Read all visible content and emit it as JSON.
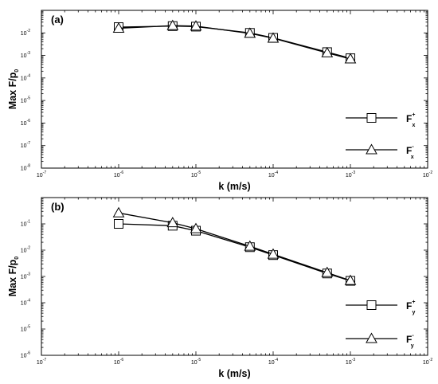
{
  "chart_data": [
    {
      "type": "line",
      "panel_label": "(a)",
      "xlabel": "k (m/s)",
      "ylabel": {
        "base": "Max F/p",
        "sub": "0"
      },
      "xscale": "log",
      "yscale": "log",
      "xlim": [
        1e-07,
        0.01
      ],
      "ylim": [
        1e-08,
        0.1
      ],
      "x_ticks": [
        {
          "base": "10",
          "exp": "-7",
          "v": 1e-07
        },
        {
          "base": "10",
          "exp": "-6",
          "v": 1e-06
        },
        {
          "base": "10",
          "exp": "-5",
          "v": 1e-05
        },
        {
          "base": "10",
          "exp": "-4",
          "v": 0.0001
        },
        {
          "base": "10",
          "exp": "-3",
          "v": 0.001
        },
        {
          "base": "10",
          "exp": "-2",
          "v": 0.01
        }
      ],
      "y_ticks": [
        {
          "base": "10",
          "exp": "-8",
          "v": 1e-08
        },
        {
          "base": "10",
          "exp": "-7",
          "v": 1e-07
        },
        {
          "base": "10",
          "exp": "-6",
          "v": 1e-06
        },
        {
          "base": "10",
          "exp": "-5",
          "v": 1e-05
        },
        {
          "base": "10",
          "exp": "-4",
          "v": 0.0001
        },
        {
          "base": "10",
          "exp": "-3",
          "v": 0.001
        },
        {
          "base": "10",
          "exp": "-2",
          "v": 0.01
        }
      ],
      "legend_position": "lower-right",
      "series": [
        {
          "name": "F",
          "sup": "+",
          "sub": "x",
          "marker": "square",
          "x": [
            1e-06,
            5e-06,
            1e-05,
            5e-05,
            0.0001,
            0.0005,
            0.001
          ],
          "y": [
            0.018,
            0.02,
            0.019,
            0.01,
            0.006,
            0.0014,
            0.00075
          ]
        },
        {
          "name": "F",
          "sup": "-",
          "sub": "x",
          "marker": "triangle",
          "x": [
            1e-06,
            5e-06,
            1e-05,
            5e-05,
            0.0001,
            0.0005,
            0.001
          ],
          "y": [
            0.016,
            0.021,
            0.02,
            0.0095,
            0.0058,
            0.0013,
            0.0007
          ]
        }
      ]
    },
    {
      "type": "line",
      "panel_label": "(b)",
      "xlabel": "k (m/s)",
      "ylabel": {
        "base": "Max F/p",
        "sub": "0"
      },
      "xscale": "log",
      "yscale": "log",
      "xlim": [
        1e-07,
        0.01
      ],
      "ylim": [
        1e-06,
        1
      ],
      "x_ticks": [
        {
          "base": "10",
          "exp": "-7",
          "v": 1e-07
        },
        {
          "base": "10",
          "exp": "-6",
          "v": 1e-06
        },
        {
          "base": "10",
          "exp": "-5",
          "v": 1e-05
        },
        {
          "base": "10",
          "exp": "-4",
          "v": 0.0001
        },
        {
          "base": "10",
          "exp": "-3",
          "v": 0.001
        },
        {
          "base": "10",
          "exp": "-2",
          "v": 0.01
        }
      ],
      "y_ticks": [
        {
          "base": "10",
          "exp": "-6",
          "v": 1e-06
        },
        {
          "base": "10",
          "exp": "-5",
          "v": 1e-05
        },
        {
          "base": "10",
          "exp": "-4",
          "v": 0.0001
        },
        {
          "base": "10",
          "exp": "-3",
          "v": 0.001
        },
        {
          "base": "10",
          "exp": "-2",
          "v": 0.01
        },
        {
          "base": "10",
          "exp": "-1",
          "v": 0.1
        }
      ],
      "legend_position": "lower-right",
      "series": [
        {
          "name": "F",
          "sup": "+",
          "sub": "y",
          "marker": "square",
          "x": [
            1e-06,
            5e-06,
            1e-05,
            5e-05,
            0.0001,
            0.0005,
            0.001
          ],
          "y": [
            0.1,
            0.085,
            0.055,
            0.013,
            0.0065,
            0.0013,
            0.00068
          ]
        },
        {
          "name": "F",
          "sup": "-",
          "sub": "y",
          "marker": "triangle",
          "x": [
            1e-06,
            5e-06,
            1e-05,
            5e-05,
            0.0001,
            0.0005,
            0.001
          ],
          "y": [
            0.26,
            0.11,
            0.065,
            0.014,
            0.007,
            0.0014,
            0.0007
          ]
        }
      ]
    }
  ]
}
